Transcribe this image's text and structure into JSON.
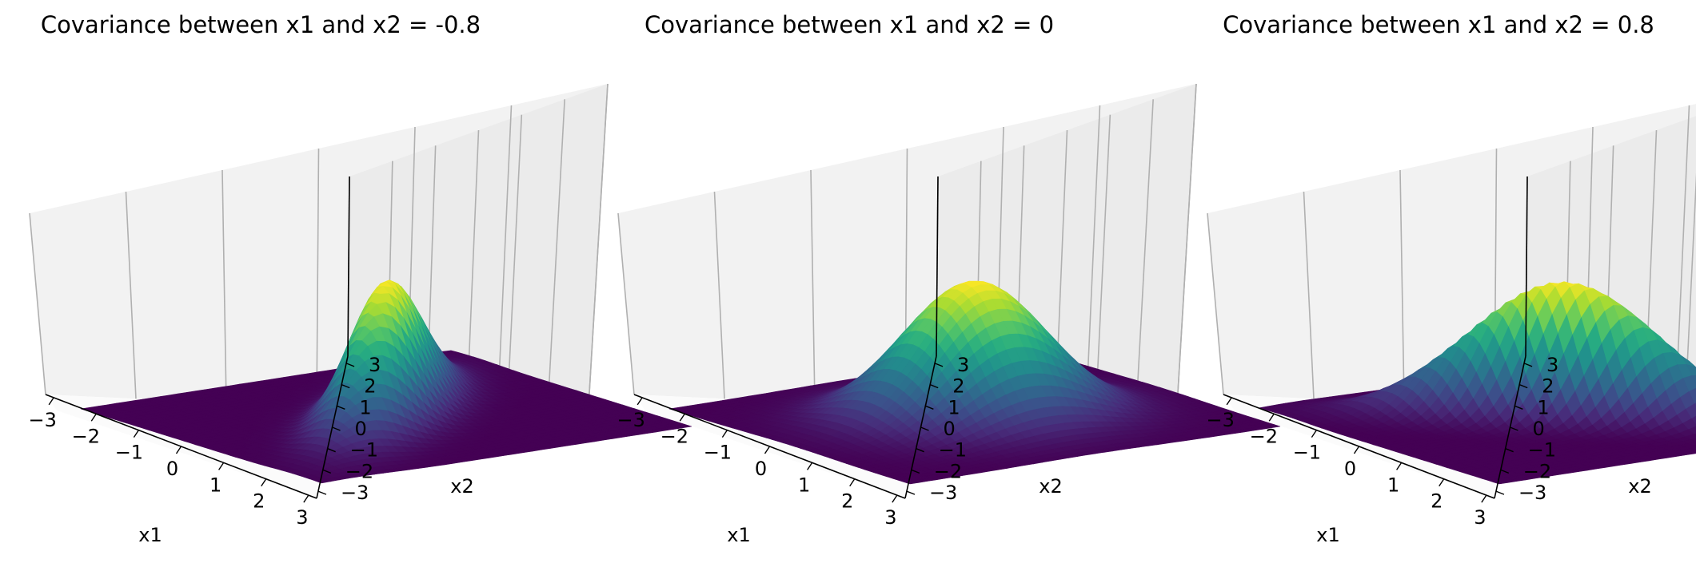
{
  "colormap": "viridis",
  "colors": {
    "pane_back": "#f2f2f2",
    "pane_side": "#ebebeb",
    "pane_floor": "#fbfbfb",
    "grid": "#b0b0b0",
    "background": "#ffffff"
  },
  "chart_data": [
    {
      "type": "surface3d",
      "title": "Covariance between x1 and x2 = -0.8",
      "covariance": -0.8,
      "mean": [
        0,
        0
      ],
      "xlabel": "x1",
      "ylabel": "x2",
      "xlim": [
        -3,
        3
      ],
      "ylim": [
        -3,
        3
      ],
      "xticks": [
        "−3",
        "−2",
        "−1",
        "0",
        "1",
        "2",
        "3"
      ],
      "yticks": [
        "−3",
        "−2",
        "−1",
        "0",
        "1",
        "2",
        "3"
      ],
      "zticks_visible": false,
      "grid": true
    },
    {
      "type": "surface3d",
      "title": "Covariance between x1 and x2 = 0",
      "covariance": 0,
      "mean": [
        0,
        0
      ],
      "xlabel": "x1",
      "ylabel": "x2",
      "xlim": [
        -3,
        3
      ],
      "ylim": [
        -3,
        3
      ],
      "xticks": [
        "−3",
        "−2",
        "−1",
        "0",
        "1",
        "2",
        "3"
      ],
      "yticks": [
        "−3",
        "−2",
        "−1",
        "0",
        "1",
        "2",
        "3"
      ],
      "zticks_visible": false,
      "grid": true
    },
    {
      "type": "surface3d",
      "title": "Covariance between x1 and x2 = 0.8",
      "covariance": 0.8,
      "mean": [
        0,
        0
      ],
      "xlabel": "x1",
      "ylabel": "x2",
      "xlim": [
        -3,
        3
      ],
      "ylim": [
        -3,
        3
      ],
      "xticks": [
        "−3",
        "−2",
        "−1",
        "0",
        "1",
        "2",
        "3"
      ],
      "yticks": [
        "−3",
        "−2",
        "−1",
        "0",
        "1",
        "2",
        "3"
      ],
      "zticks_visible": false,
      "grid": true
    }
  ]
}
